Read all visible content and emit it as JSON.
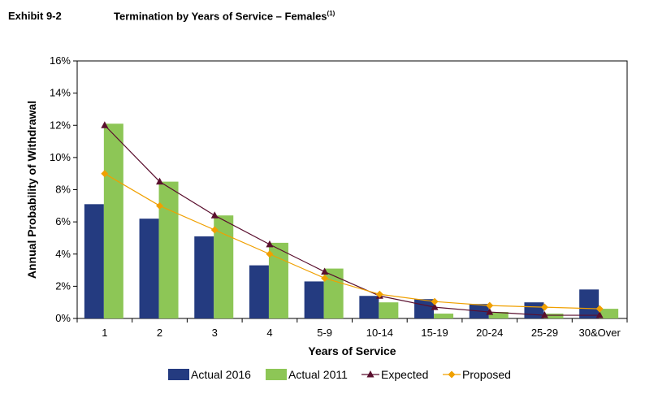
{
  "header": {
    "exhibit_label": "Exhibit 9-2",
    "title": "Termination by Years of Service – Females",
    "title_footnote": "(1)"
  },
  "colors": {
    "actual_2016": "#243B80",
    "actual_2011": "#8DC656",
    "expected": "#5A0F2E",
    "proposed": "#F0A000"
  },
  "chart_data": {
    "type": "bar",
    "xlabel": "Years of Service",
    "ylabel": "Annual Probability of Withdrawal",
    "ylim": [
      0,
      16
    ],
    "y_unit": "%",
    "y_ticks": [
      "0%",
      "2%",
      "4%",
      "6%",
      "8%",
      "10%",
      "12%",
      "14%",
      "16%"
    ],
    "categories": [
      "1",
      "2",
      "3",
      "4",
      "5-9",
      "10-14",
      "15-19",
      "20-24",
      "25-29",
      "30&Over"
    ],
    "series": [
      {
        "name": "Actual 2016",
        "kind": "bar",
        "values": [
          7.1,
          6.2,
          5.1,
          3.3,
          2.3,
          1.4,
          1.2,
          0.9,
          1.0,
          1.8
        ]
      },
      {
        "name": "Actual 2011",
        "kind": "bar",
        "values": [
          12.1,
          8.5,
          6.4,
          4.7,
          3.1,
          1.0,
          0.3,
          0.4,
          0.3,
          0.6
        ]
      },
      {
        "name": "Expected",
        "kind": "line",
        "marker": "triangle",
        "values": [
          12.0,
          8.5,
          6.4,
          4.6,
          2.9,
          1.4,
          0.7,
          0.4,
          0.2,
          0.2
        ]
      },
      {
        "name": "Proposed",
        "kind": "line",
        "marker": "diamond",
        "values": [
          9.0,
          7.0,
          5.5,
          4.0,
          2.5,
          1.5,
          1.05,
          0.8,
          0.7,
          0.6
        ]
      }
    ],
    "grid": false,
    "legend_position": "bottom"
  }
}
